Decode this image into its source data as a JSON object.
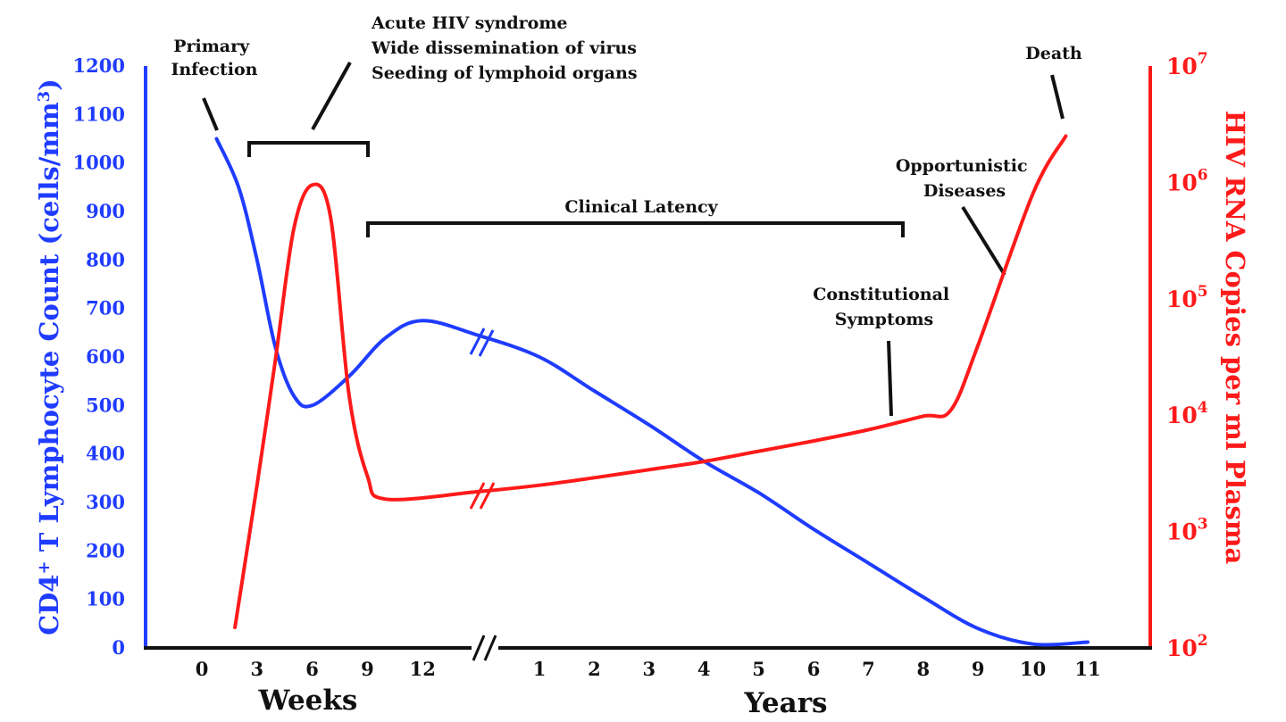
{
  "chart_data": {
    "type": "line",
    "title": "",
    "left_axis": {
      "label_prefix": "CD4",
      "label_sup1": "+",
      "label_mid": " T Lymphocyte Count (cells/mm",
      "label_sup2": "3",
      "label_suffix": ")",
      "ylim": [
        0,
        1200
      ],
      "ticks": [
        "0",
        "100",
        "200",
        "300",
        "400",
        "500",
        "600",
        "700",
        "800",
        "900",
        "1000",
        "1100",
        "1200"
      ],
      "color": "#1f3cff"
    },
    "right_axis": {
      "label": "HIV RNA Copies per ml Plasma",
      "scale": "log",
      "ylim": [
        100,
        10000000
      ],
      "ticks": [
        {
          "base": "10",
          "exp": "2"
        },
        {
          "base": "10",
          "exp": "3"
        },
        {
          "base": "10",
          "exp": "4"
        },
        {
          "base": "10",
          "exp": "5"
        },
        {
          "base": "10",
          "exp": "6"
        },
        {
          "base": "10",
          "exp": "7"
        }
      ],
      "color": "#ff1a1a"
    },
    "x_axis": {
      "segments": [
        {
          "unit": "Weeks",
          "ticks": [
            "0",
            "3",
            "6",
            "9",
            "12"
          ]
        },
        {
          "unit": "Years",
          "ticks": [
            "1",
            "2",
            "3",
            "4",
            "5",
            "6",
            "7",
            "8",
            "9",
            "10",
            "11"
          ]
        }
      ],
      "break_mark": "//"
    },
    "series": [
      {
        "name": "",
        "axis": "left",
        "color": "#1f3cff",
        "points": [
          {
            "x": "wk 0.8",
            "y": 1050
          },
          {
            "x": "wk 2",
            "y": 950
          },
          {
            "x": "wk 3",
            "y": 800
          },
          {
            "x": "wk 4",
            "y": 620
          },
          {
            "x": "wk 5",
            "y": 520
          },
          {
            "x": "wk 6",
            "y": 500
          },
          {
            "x": "wk 8",
            "y": 560
          },
          {
            "x": "wk 10",
            "y": 640
          },
          {
            "x": "wk 12",
            "y": 675
          },
          {
            "x": "wk 15",
            "y": 645
          },
          {
            "x": "yr 1",
            "y": 600
          },
          {
            "x": "yr 2",
            "y": 530
          },
          {
            "x": "yr 3",
            "y": 460
          },
          {
            "x": "yr 4",
            "y": 385
          },
          {
            "x": "yr 5",
            "y": 320
          },
          {
            "x": "yr 6",
            "y": 245
          },
          {
            "x": "yr 7",
            "y": 175
          },
          {
            "x": "yr 8",
            "y": 105
          },
          {
            "x": "yr 9",
            "y": 40
          },
          {
            "x": "yr 10",
            "y": 8
          },
          {
            "x": "yr 11",
            "y": 12
          }
        ]
      },
      {
        "name": "",
        "axis": "right",
        "color": "#ff1a1a",
        "points": [
          {
            "x": "wk 1.8",
            "y": 150
          },
          {
            "x": "wk 3",
            "y": 2500
          },
          {
            "x": "wk 4",
            "y": 30000
          },
          {
            "x": "wk 5",
            "y": 400000
          },
          {
            "x": "wk 6",
            "y": 950000
          },
          {
            "x": "wk 7",
            "y": 500000
          },
          {
            "x": "wk 8",
            "y": 15000
          },
          {
            "x": "wk 9",
            "y": 3000
          },
          {
            "x": "wk 10",
            "y": 1900
          },
          {
            "x": "wk 15",
            "y": 2200
          },
          {
            "x": "yr 1",
            "y": 2500
          },
          {
            "x": "yr 2",
            "y": 2900
          },
          {
            "x": "yr 3",
            "y": 3400
          },
          {
            "x": "yr 4",
            "y": 4000
          },
          {
            "x": "yr 5",
            "y": 4900
          },
          {
            "x": "yr 6",
            "y": 6000
          },
          {
            "x": "yr 7",
            "y": 7500
          },
          {
            "x": "yr 8",
            "y": 9800
          },
          {
            "x": "yr 8.5",
            "y": 11000
          },
          {
            "x": "yr 9",
            "y": 40000
          },
          {
            "x": "yr 10",
            "y": 800000
          },
          {
            "x": "yr 10.6",
            "y": 2500000
          }
        ]
      }
    ],
    "annotations": [
      {
        "lines": [
          "Primary",
          "Infection"
        ]
      },
      {
        "lines": [
          "Acute HIV syndrome",
          "Wide dissemination of virus",
          "Seeding of lymphoid organs"
        ]
      },
      {
        "lines": [
          "Clinical Latency"
        ]
      },
      {
        "lines": [
          "Constitutional",
          "Symptoms"
        ]
      },
      {
        "lines": [
          "Opportunistic",
          "Diseases"
        ]
      },
      {
        "lines": [
          "Death"
        ]
      }
    ]
  }
}
